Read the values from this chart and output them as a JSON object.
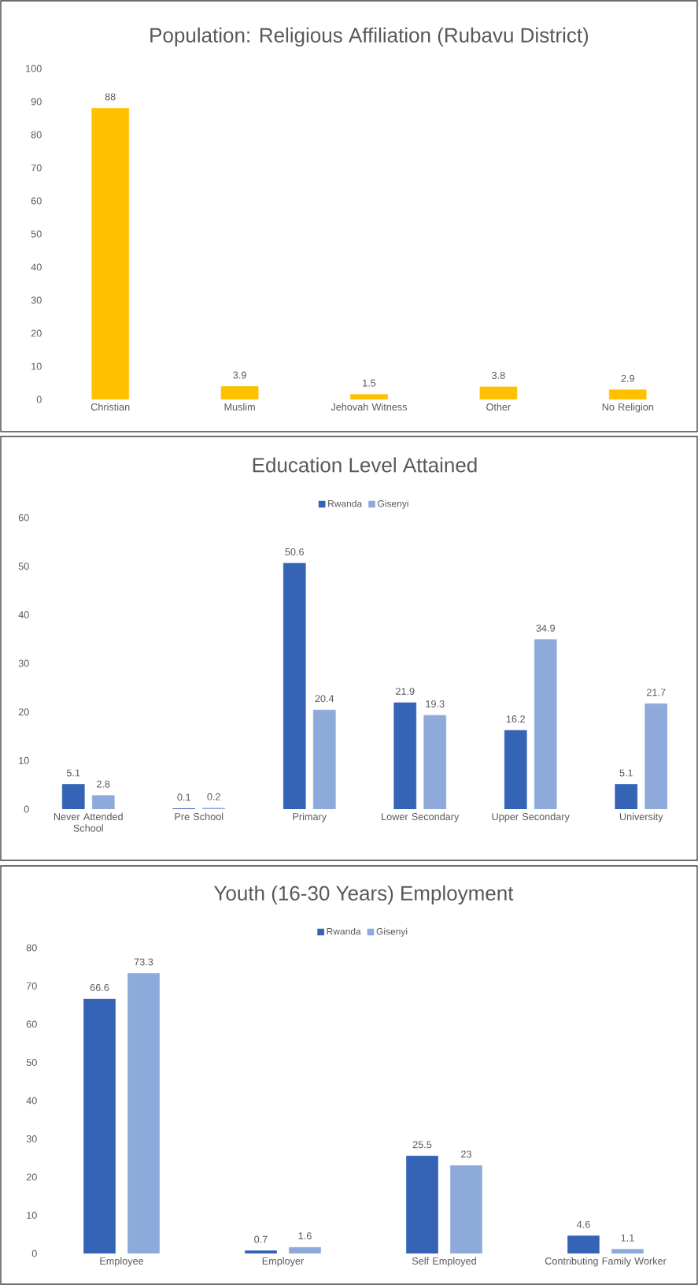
{
  "chart_data": [
    {
      "type": "bar",
      "title": "Population: Religious Affiliation (Rubavu District)",
      "categories": [
        "Christian",
        "Muslim",
        "Jehovah Witness",
        "Other",
        "No Religion"
      ],
      "values": [
        88,
        3.9,
        1.5,
        3.8,
        2.9
      ],
      "color": "#ffc000",
      "ylim": [
        0,
        100
      ],
      "yticks": [
        0,
        10,
        20,
        30,
        40,
        50,
        60,
        70,
        80,
        90,
        100
      ],
      "data_labels": true
    },
    {
      "type": "bar",
      "title": "Education Level Attained",
      "categories": [
        "Never Attended School",
        "Pre School",
        "Primary",
        "Lower Secondary",
        "Upper Secondary",
        "University"
      ],
      "series": [
        {
          "name": "Rwanda",
          "color": "#3563b5",
          "values": [
            5.1,
            0.1,
            50.6,
            21.9,
            16.2,
            5.1
          ]
        },
        {
          "name": "Gisenyi",
          "color": "#8eaadb",
          "values": [
            2.8,
            0.2,
            20.4,
            19.3,
            34.9,
            21.7
          ]
        }
      ],
      "ylim": [
        0,
        60
      ],
      "yticks": [
        0,
        10,
        20,
        30,
        40,
        50,
        60
      ],
      "legend": "top",
      "data_labels": true
    },
    {
      "type": "bar",
      "title": "Youth (16-30 Years) Employment",
      "categories": [
        "Employee",
        "Employer",
        "Self Employed",
        "Contributing Family Worker"
      ],
      "series": [
        {
          "name": "Rwanda",
          "color": "#3563b5",
          "values": [
            66.6,
            0.7,
            25.5,
            4.6
          ]
        },
        {
          "name": "Gisenyi",
          "color": "#8eaadb",
          "values": [
            73.3,
            1.6,
            23,
            1.1
          ]
        }
      ],
      "ylim": [
        0,
        80
      ],
      "yticks": [
        0,
        10,
        20,
        30,
        40,
        50,
        60,
        70,
        80
      ],
      "legend": "top",
      "data_labels": true
    }
  ]
}
